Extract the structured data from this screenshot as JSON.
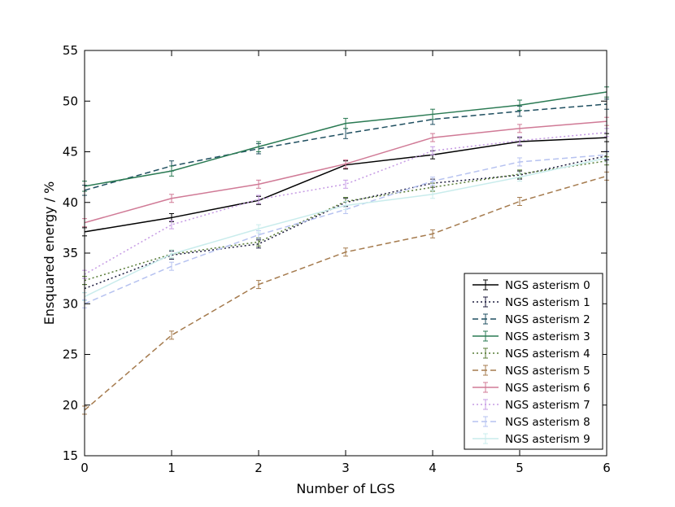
{
  "chart_data": {
    "type": "line",
    "title": "",
    "xlabel": "Number of LGS",
    "ylabel": "Ensquared energy / %",
    "xlim": [
      0,
      6
    ],
    "ylim": [
      15,
      55
    ],
    "xticks": [
      "0",
      "1",
      "2",
      "3",
      "4",
      "5",
      "6"
    ],
    "yticks": [
      "15",
      "20",
      "25",
      "30",
      "35",
      "40",
      "45",
      "50",
      "55"
    ],
    "grid": false,
    "legend_position": "lower-right",
    "x": [
      0,
      1,
      2,
      3,
      4,
      5,
      6
    ],
    "series": [
      {
        "name": "NGS asterism 0",
        "values": [
          37.1,
          38.5,
          40.2,
          43.7,
          44.7,
          46.0,
          46.4
        ],
        "err": 0.4,
        "color": "#000000",
        "dash": "solid"
      },
      {
        "name": "NGS asterism 1",
        "values": [
          31.5,
          34.8,
          35.9,
          40.0,
          41.9,
          42.7,
          44.6
        ],
        "err": 0.4,
        "color": "#1c1b3d",
        "dash": "dotted"
      },
      {
        "name": "NGS asterism 2",
        "values": [
          41.2,
          43.6,
          45.3,
          46.8,
          48.2,
          49.0,
          49.7
        ],
        "err": 0.5,
        "color": "#1f4f60",
        "dash": "dashed"
      },
      {
        "name": "NGS asterism 3",
        "values": [
          41.6,
          43.1,
          45.5,
          47.8,
          48.7,
          49.6,
          50.9
        ],
        "err": 0.5,
        "color": "#2a7a53",
        "dash": "solid"
      },
      {
        "name": "NGS asterism 4",
        "values": [
          32.3,
          34.9,
          36.1,
          40.1,
          41.5,
          42.8,
          44.1
        ],
        "err": 0.4,
        "color": "#577b35",
        "dash": "dotted"
      },
      {
        "name": "NGS asterism 5",
        "values": [
          19.5,
          26.9,
          31.9,
          35.1,
          36.9,
          40.1,
          42.6
        ],
        "err": 0.4,
        "color": "#a57b4e",
        "dash": "dashed"
      },
      {
        "name": "NGS asterism 6",
        "values": [
          38.0,
          40.4,
          41.8,
          43.8,
          46.4,
          47.3,
          48.0
        ],
        "err": 0.4,
        "color": "#d07a96",
        "dash": "solid"
      },
      {
        "name": "NGS asterism 7",
        "values": [
          32.9,
          37.8,
          40.3,
          41.8,
          45.1,
          46.1,
          46.9
        ],
        "err": 0.4,
        "color": "#c69be4",
        "dash": "dotted"
      },
      {
        "name": "NGS asterism 8",
        "values": [
          30.0,
          33.7,
          36.8,
          39.3,
          42.1,
          44.0,
          44.7
        ],
        "err": 0.4,
        "color": "#b6c2f0",
        "dash": "dashed"
      },
      {
        "name": "NGS asterism 9",
        "values": [
          30.7,
          34.9,
          37.4,
          39.7,
          40.8,
          42.5,
          44.4
        ],
        "err": 0.4,
        "color": "#c9ecec",
        "dash": "solid"
      }
    ]
  }
}
